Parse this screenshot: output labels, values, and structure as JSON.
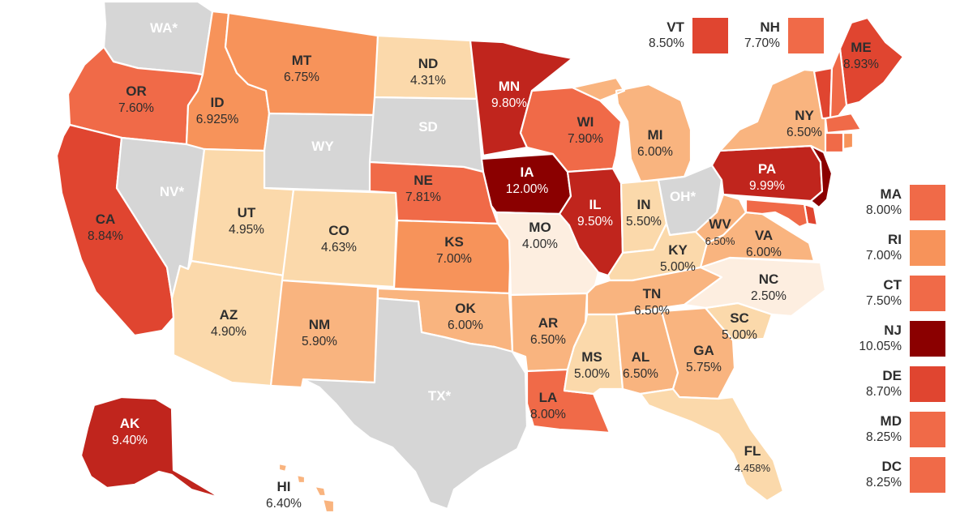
{
  "colors": {
    "no_tax": "#d6d6d6",
    "lightest": "#fdeee0",
    "light": "#fbd9ab",
    "mid": "#f9b47f",
    "orange": "#f7935a",
    "red_orange": "#f06a48",
    "red": "#e04530",
    "dark_red": "#c0251d",
    "darkest": "#8b0000"
  },
  "states": [
    {
      "id": "WA",
      "label": "WA*",
      "rate": "",
      "tier": "no_tax"
    },
    {
      "id": "OR",
      "label": "OR",
      "rate": "7.60%",
      "tier": "red_orange"
    },
    {
      "id": "CA",
      "label": "CA",
      "rate": "8.84%",
      "tier": "red"
    },
    {
      "id": "NV",
      "label": "NV*",
      "rate": "",
      "tier": "no_tax"
    },
    {
      "id": "ID",
      "label": "ID",
      "rate": "6.925%",
      "tier": "orange"
    },
    {
      "id": "MT",
      "label": "MT",
      "rate": "6.75%",
      "tier": "orange"
    },
    {
      "id": "WY",
      "label": "WY",
      "rate": "",
      "tier": "no_tax"
    },
    {
      "id": "UT",
      "label": "UT",
      "rate": "4.95%",
      "tier": "light"
    },
    {
      "id": "AZ",
      "label": "AZ",
      "rate": "4.90%",
      "tier": "light"
    },
    {
      "id": "CO",
      "label": "CO",
      "rate": "4.63%",
      "tier": "light"
    },
    {
      "id": "NM",
      "label": "NM",
      "rate": "5.90%",
      "tier": "mid"
    },
    {
      "id": "ND",
      "label": "ND",
      "rate": "4.31%",
      "tier": "light"
    },
    {
      "id": "SD",
      "label": "SD",
      "rate": "",
      "tier": "no_tax"
    },
    {
      "id": "NE",
      "label": "NE",
      "rate": "7.81%",
      "tier": "red_orange"
    },
    {
      "id": "KS",
      "label": "KS",
      "rate": "7.00%",
      "tier": "orange"
    },
    {
      "id": "OK",
      "label": "OK",
      "rate": "6.00%",
      "tier": "mid"
    },
    {
      "id": "TX",
      "label": "TX*",
      "rate": "",
      "tier": "no_tax"
    },
    {
      "id": "MN",
      "label": "MN",
      "rate": "9.80%",
      "tier": "dark_red"
    },
    {
      "id": "IA",
      "label": "IA",
      "rate": "12.00%",
      "tier": "darkest"
    },
    {
      "id": "MO",
      "label": "MO",
      "rate": "4.00%",
      "tier": "lightest"
    },
    {
      "id": "AR",
      "label": "AR",
      "rate": "6.50%",
      "tier": "mid"
    },
    {
      "id": "LA",
      "label": "LA",
      "rate": "8.00%",
      "tier": "red_orange"
    },
    {
      "id": "WI",
      "label": "WI",
      "rate": "7.90%",
      "tier": "red_orange"
    },
    {
      "id": "IL",
      "label": "IL",
      "rate": "9.50%",
      "tier": "dark_red"
    },
    {
      "id": "MI",
      "label": "MI",
      "rate": "6.00%",
      "tier": "mid"
    },
    {
      "id": "IN",
      "label": "IN",
      "rate": "5.50%",
      "tier": "light"
    },
    {
      "id": "OH",
      "label": "OH*",
      "rate": "",
      "tier": "no_tax"
    },
    {
      "id": "KY",
      "label": "KY",
      "rate": "5.00%",
      "tier": "light"
    },
    {
      "id": "TN",
      "label": "TN",
      "rate": "6.50%",
      "tier": "mid"
    },
    {
      "id": "MS",
      "label": "MS",
      "rate": "5.00%",
      "tier": "light"
    },
    {
      "id": "AL",
      "label": "AL",
      "rate": "6.50%",
      "tier": "mid"
    },
    {
      "id": "GA",
      "label": "GA",
      "rate": "5.75%",
      "tier": "mid"
    },
    {
      "id": "FL",
      "label": "FL",
      "rate": "4.458%",
      "tier": "light"
    },
    {
      "id": "SC",
      "label": "SC",
      "rate": "5.00%",
      "tier": "light"
    },
    {
      "id": "NC",
      "label": "NC",
      "rate": "2.50%",
      "tier": "lightest"
    },
    {
      "id": "VA",
      "label": "VA",
      "rate": "6.00%",
      "tier": "mid"
    },
    {
      "id": "WV",
      "label": "WV",
      "rate": "6.50%",
      "tier": "mid"
    },
    {
      "id": "PA",
      "label": "PA",
      "rate": "9.99%",
      "tier": "dark_red"
    },
    {
      "id": "NY",
      "label": "NY",
      "rate": "6.50%",
      "tier": "mid"
    },
    {
      "id": "ME",
      "label": "ME",
      "rate": "8.93%",
      "tier": "red"
    },
    {
      "id": "AK",
      "label": "AK",
      "rate": "9.40%",
      "tier": "dark_red"
    },
    {
      "id": "HI",
      "label": "HI",
      "rate": "6.40%",
      "tier": "mid"
    }
  ],
  "legend_top": [
    {
      "id": "VT",
      "label": "VT",
      "rate": "8.50%",
      "tier": "red"
    },
    {
      "id": "NH",
      "label": "NH",
      "rate": "7.70%",
      "tier": "red_orange"
    }
  ],
  "legend_right": [
    {
      "id": "MA",
      "label": "MA",
      "rate": "8.00%",
      "tier": "red_orange"
    },
    {
      "id": "RI",
      "label": "RI",
      "rate": "7.00%",
      "tier": "orange"
    },
    {
      "id": "CT",
      "label": "CT",
      "rate": "7.50%",
      "tier": "red_orange"
    },
    {
      "id": "NJ",
      "label": "NJ",
      "rate": "10.05%",
      "tier": "darkest"
    },
    {
      "id": "DE",
      "label": "DE",
      "rate": "8.70%",
      "tier": "red"
    },
    {
      "id": "MD",
      "label": "MD",
      "rate": "8.25%",
      "tier": "red_orange"
    },
    {
      "id": "DC",
      "label": "DC",
      "rate": "8.25%",
      "tier": "red_orange"
    }
  ]
}
